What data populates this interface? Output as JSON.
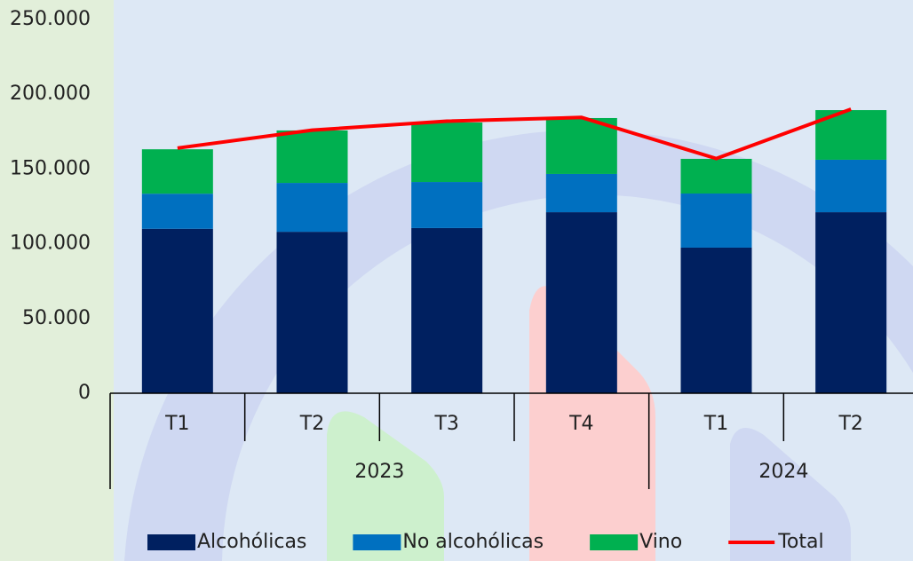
{
  "chart_data": {
    "type": "stacked-bar-line",
    "groups": [
      {
        "label": "2023",
        "categories": [
          "T1",
          "T2",
          "T3",
          "T4"
        ]
      },
      {
        "label": "2024",
        "categories": [
          "T1",
          "T2"
        ]
      }
    ],
    "series": [
      {
        "name": "Alcohólicas",
        "color": "#002060",
        "values": [
          110000,
          108000,
          110500,
          121100,
          97400,
          121100
        ]
      },
      {
        "name": "No alcohólicas",
        "color": "#0070c0",
        "values": [
          23500,
          32700,
          30800,
          25600,
          36200,
          35100
        ]
      },
      {
        "name": "Vino",
        "color": "#00b050",
        "values": [
          29700,
          35100,
          39800,
          37400,
          23200,
          33200
        ]
      },
      {
        "name": "Total",
        "color": "#ff0000",
        "type": "line",
        "values": [
          164000,
          176000,
          182000,
          184500,
          157000,
          190000
        ]
      }
    ],
    "ylim": [
      0,
      250000
    ],
    "yticks": [
      0,
      {
        "value": 50000,
        "label": "50.000"
      },
      {
        "value": 100000,
        "label": "100.000"
      },
      {
        "value": 150000,
        "label": "150.000"
      },
      {
        "value": 200000,
        "label": "200.000"
      },
      {
        "value": 250000,
        "label": "250.000"
      }
    ],
    "grid": false,
    "legend": "bottom"
  }
}
